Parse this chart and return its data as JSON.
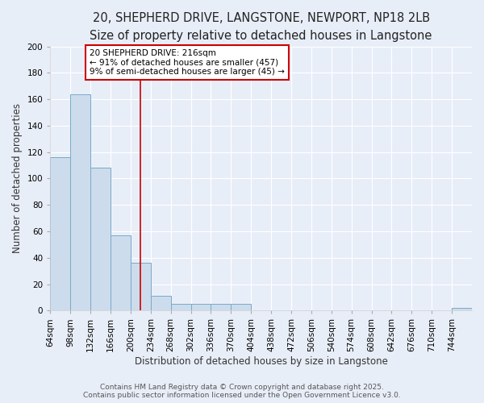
{
  "title_line1": "20, SHEPHERD DRIVE, LANGSTONE, NEWPORT, NP18 2LB",
  "title_line2": "Size of property relative to detached houses in Langstone",
  "xlabel": "Distribution of detached houses by size in Langstone",
  "ylabel": "Number of detached properties",
  "bin_edges": [
    64,
    98,
    132,
    166,
    200,
    234,
    268,
    302,
    336,
    370,
    404,
    438,
    472,
    506,
    540,
    574,
    608,
    642,
    676,
    710,
    744,
    778
  ],
  "bar_heights": [
    116,
    164,
    108,
    57,
    36,
    11,
    5,
    5,
    5,
    5,
    0,
    0,
    0,
    0,
    0,
    0,
    0,
    0,
    0,
    0,
    2
  ],
  "bar_color": "#ccdcec",
  "bar_edge_color": "#7aaac8",
  "vline_x": 216,
  "vline_color": "#cc0000",
  "annotation_text": "20 SHEPHERD DRIVE: 216sqm\n← 91% of detached houses are smaller (457)\n9% of semi-detached houses are larger (45) →",
  "annotation_box_color": "#ffffff",
  "annotation_box_edge": "#cc0000",
  "background_color": "#e8eef8",
  "grid_color": "#ffffff",
  "tick_labels": [
    "64sqm",
    "98sqm",
    "132sqm",
    "166sqm",
    "200sqm",
    "234sqm",
    "268sqm",
    "302sqm",
    "336sqm",
    "370sqm",
    "404sqm",
    "438sqm",
    "472sqm",
    "506sqm",
    "540sqm",
    "574sqm",
    "608sqm",
    "642sqm",
    "676sqm",
    "710sqm",
    "744sqm"
  ],
  "ylim": [
    0,
    200
  ],
  "yticks": [
    0,
    20,
    40,
    60,
    80,
    100,
    120,
    140,
    160,
    180,
    200
  ],
  "footnote": "Contains HM Land Registry data © Crown copyright and database right 2025.\nContains public sector information licensed under the Open Government Licence v3.0.",
  "title_fontsize": 10.5,
  "subtitle_fontsize": 9.5,
  "axis_label_fontsize": 8.5,
  "tick_fontsize": 7.5,
  "annot_fontsize": 7.5,
  "footnote_fontsize": 6.5
}
